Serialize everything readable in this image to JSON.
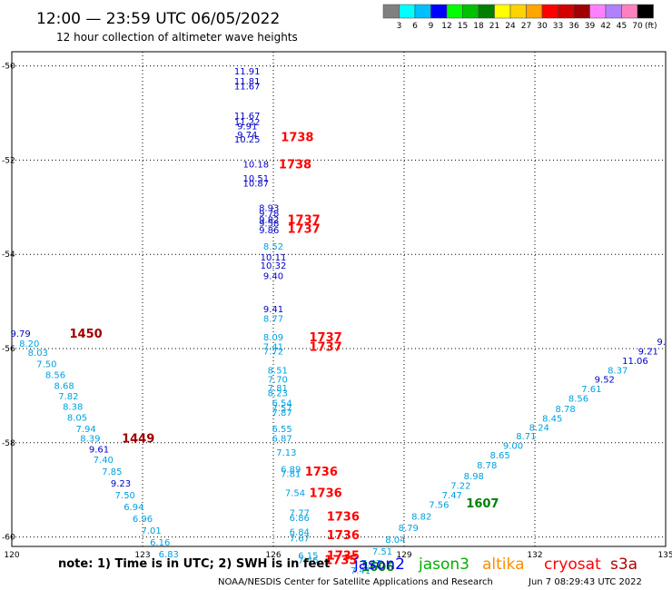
{
  "header": {
    "title": "12:00 — 23:59 UTC 06/05/2022",
    "subtitle": "12 hour collection of altimeter wave heights"
  },
  "footer": {
    "note": "note:  1) Time is in UTC; 2) SWH is in feet",
    "credit": "NOAA/NESDIS Center for Satellite Applications and Research",
    "timestamp": "Jun  7 08:29:43 UTC 2022"
  },
  "chart_data": {
    "type": "scatter",
    "xlim": [
      120,
      135
    ],
    "ylim": [
      -60.2,
      -49.7
    ],
    "x_ticks": [
      {
        "value": 120,
        "label": "120"
      },
      {
        "value": 123,
        "label": "123"
      },
      {
        "value": 126,
        "label": "126"
      },
      {
        "value": 129,
        "label": "129"
      },
      {
        "value": 132,
        "label": "132"
      },
      {
        "value": 135,
        "label": "135"
      }
    ],
    "y_ticks": [
      {
        "value": -50,
        "label": "-50"
      },
      {
        "value": -52,
        "label": "-52"
      },
      {
        "value": -54,
        "label": "-54"
      },
      {
        "value": -56,
        "label": "-56"
      },
      {
        "value": -58,
        "label": "-58"
      },
      {
        "value": -60,
        "label": "-60"
      }
    ],
    "grid": true,
    "legend": {
      "title_unit": "(ft)",
      "colors": [
        "#808080",
        "#00ffff",
        "#00bfff",
        "#0000ff",
        "#00ff00",
        "#00c000",
        "#008000",
        "#ffff00",
        "#ffd200",
        "#ffa500",
        "#ff0000",
        "#d20000",
        "#a00000",
        "#ff80ff",
        "#b080ff",
        "#ff80c0",
        "#000000"
      ],
      "labels": [
        "3",
        "6",
        "9",
        "12",
        "15",
        "18",
        "21",
        "24",
        "27",
        "30",
        "33",
        "36",
        "39",
        "42",
        "45",
        "70"
      ]
    },
    "satellites": [
      {
        "name": "jason2",
        "color": "#0000ff"
      },
      {
        "name": "jason3",
        "color": "#00b000"
      },
      {
        "name": "altika",
        "color": "#ff8c00"
      },
      {
        "name": "cryosat",
        "color": "#ff0000"
      },
      {
        "name": "s3a",
        "color": "#b00000"
      }
    ],
    "points": [
      {
        "x": 125.4,
        "y": -50.1,
        "v": "11.91",
        "c": "#0000cc"
      },
      {
        "x": 125.4,
        "y": -50.32,
        "v": "11.81",
        "c": "#0000cc"
      },
      {
        "x": 125.4,
        "y": -50.42,
        "v": "11.67",
        "c": "#0000cc"
      },
      {
        "x": 125.4,
        "y": -51.05,
        "v": "11.67",
        "c": "#0000cc"
      },
      {
        "x": 125.4,
        "y": -51.18,
        "v": "11.22",
        "c": "#0000cc"
      },
      {
        "x": 125.4,
        "y": -51.27,
        "v": "9.91",
        "c": "#0000cc"
      },
      {
        "x": 125.4,
        "y": -51.45,
        "v": "9.74",
        "c": "#0000cc"
      },
      {
        "x": 125.4,
        "y": -51.55,
        "v": "10.25",
        "c": "#0000cc"
      },
      {
        "x": 125.6,
        "y": -52.08,
        "v": "10.18",
        "c": "#0000cc"
      },
      {
        "x": 125.6,
        "y": -52.38,
        "v": "10.51",
        "c": "#0000cc"
      },
      {
        "x": 125.6,
        "y": -52.48,
        "v": "10.87",
        "c": "#0000cc"
      },
      {
        "x": 125.9,
        "y": -53.0,
        "v": "8.93",
        "c": "#0000cc"
      },
      {
        "x": 125.9,
        "y": -53.12,
        "v": "9.78",
        "c": "#0000cc"
      },
      {
        "x": 125.9,
        "y": -53.25,
        "v": "9.82",
        "c": "#0000cc"
      },
      {
        "x": 125.9,
        "y": -53.33,
        "v": "9.58",
        "c": "#0000cc"
      },
      {
        "x": 125.9,
        "y": -53.48,
        "v": "9.86",
        "c": "#0000cc"
      },
      {
        "x": 126.0,
        "y": -53.82,
        "v": "8.52",
        "c": "#00a0e0"
      },
      {
        "x": 126.0,
        "y": -54.05,
        "v": "10.11",
        "c": "#0000cc"
      },
      {
        "x": 126.0,
        "y": -54.23,
        "v": "10.32",
        "c": "#0000cc"
      },
      {
        "x": 126.0,
        "y": -54.45,
        "v": "9.40",
        "c": "#0000cc"
      },
      {
        "x": 126.0,
        "y": -55.15,
        "v": "9.41",
        "c": "#0000cc"
      },
      {
        "x": 126.0,
        "y": -55.35,
        "v": "8.77",
        "c": "#00a0e0"
      },
      {
        "x": 126.0,
        "y": -55.75,
        "v": "8.09",
        "c": "#00a0e0"
      },
      {
        "x": 126.0,
        "y": -55.95,
        "v": "7.41",
        "c": "#00a0e0"
      },
      {
        "x": 126.0,
        "y": -56.05,
        "v": "7.72",
        "c": "#00a0e0"
      },
      {
        "x": 126.1,
        "y": -56.45,
        "v": "8.51",
        "c": "#00a0e0"
      },
      {
        "x": 126.1,
        "y": -56.65,
        "v": "7.70",
        "c": "#00a0e0"
      },
      {
        "x": 126.1,
        "y": -56.83,
        "v": "7.81",
        "c": "#00a0e0"
      },
      {
        "x": 126.1,
        "y": -56.93,
        "v": "8.23",
        "c": "#00a0e0"
      },
      {
        "x": 126.2,
        "y": -57.15,
        "v": "6.54",
        "c": "#00a0e0"
      },
      {
        "x": 126.2,
        "y": -57.25,
        "v": "7.57",
        "c": "#00a0e0"
      },
      {
        "x": 126.2,
        "y": -57.35,
        "v": "7.87",
        "c": "#00a0e0"
      },
      {
        "x": 126.2,
        "y": -57.7,
        "v": "6.55",
        "c": "#00a0e0"
      },
      {
        "x": 126.2,
        "y": -57.9,
        "v": "6.87",
        "c": "#00a0e0"
      },
      {
        "x": 126.3,
        "y": -58.2,
        "v": "7.13",
        "c": "#00a0e0"
      },
      {
        "x": 126.4,
        "y": -58.55,
        "v": "6.89",
        "c": "#00a0e0"
      },
      {
        "x": 126.4,
        "y": -58.65,
        "v": "7.81",
        "c": "#00a0e0"
      },
      {
        "x": 126.5,
        "y": -59.05,
        "v": "7.54",
        "c": "#00a0e0"
      },
      {
        "x": 126.6,
        "y": -59.48,
        "v": "7.77",
        "c": "#00a0e0"
      },
      {
        "x": 126.6,
        "y": -59.58,
        "v": "6.86",
        "c": "#00a0e0"
      },
      {
        "x": 126.6,
        "y": -59.88,
        "v": "6.84",
        "c": "#00a0e0"
      },
      {
        "x": 126.6,
        "y": -60.02,
        "v": "7.67",
        "c": "#00a0e0"
      },
      {
        "x": 126.8,
        "y": -60.38,
        "v": "6.15",
        "c": "#00a0e0"
      },
      {
        "x": 126.8,
        "y": -60.48,
        "v": "7.46",
        "c": "#00a0e0"
      },
      {
        "x": 120.2,
        "y": -55.67,
        "v": "9.79",
        "c": "#0000cc"
      },
      {
        "x": 120.4,
        "y": -55.88,
        "v": "8.20",
        "c": "#00a0e0"
      },
      {
        "x": 120.6,
        "y": -56.08,
        "v": "8.03",
        "c": "#00a0e0"
      },
      {
        "x": 120.8,
        "y": -56.32,
        "v": "7.50",
        "c": "#00a0e0"
      },
      {
        "x": 121.0,
        "y": -56.55,
        "v": "8.56",
        "c": "#00a0e0"
      },
      {
        "x": 121.2,
        "y": -56.78,
        "v": "8.68",
        "c": "#00a0e0"
      },
      {
        "x": 121.3,
        "y": -57.0,
        "v": "7.82",
        "c": "#00a0e0"
      },
      {
        "x": 121.4,
        "y": -57.22,
        "v": "8.38",
        "c": "#00a0e0"
      },
      {
        "x": 121.5,
        "y": -57.45,
        "v": "8.05",
        "c": "#00a0e0"
      },
      {
        "x": 121.7,
        "y": -57.7,
        "v": "7.94",
        "c": "#00a0e0"
      },
      {
        "x": 121.8,
        "y": -57.9,
        "v": "8.39",
        "c": "#00a0e0"
      },
      {
        "x": 122.0,
        "y": -58.13,
        "v": "9.61",
        "c": "#0000cc"
      },
      {
        "x": 122.1,
        "y": -58.35,
        "v": "7.40",
        "c": "#00a0e0"
      },
      {
        "x": 122.3,
        "y": -58.6,
        "v": "7.85",
        "c": "#00a0e0"
      },
      {
        "x": 122.5,
        "y": -58.85,
        "v": "9.23",
        "c": "#0000cc"
      },
      {
        "x": 122.6,
        "y": -59.1,
        "v": "7.50",
        "c": "#00a0e0"
      },
      {
        "x": 122.8,
        "y": -59.35,
        "v": "6.94",
        "c": "#00a0e0"
      },
      {
        "x": 123.0,
        "y": -59.6,
        "v": "6.96",
        "c": "#00a0e0"
      },
      {
        "x": 123.2,
        "y": -59.85,
        "v": "7.01",
        "c": "#00a0e0"
      },
      {
        "x": 123.4,
        "y": -60.1,
        "v": "6.16",
        "c": "#00a0e0"
      },
      {
        "x": 123.6,
        "y": -60.35,
        "v": "6.83",
        "c": "#00a0e0"
      },
      {
        "x": 128.0,
        "y": -60.7,
        "v": "7.41",
        "c": "#00a0e0"
      },
      {
        "x": 128.25,
        "y": -60.55,
        "v": "7.43",
        "c": "#00a0e0"
      },
      {
        "x": 128.5,
        "y": -60.3,
        "v": "7.51",
        "c": "#00a0e0"
      },
      {
        "x": 128.8,
        "y": -60.05,
        "v": "8.04",
        "c": "#00a0e0"
      },
      {
        "x": 129.1,
        "y": -59.8,
        "v": "8.79",
        "c": "#00a0e0"
      },
      {
        "x": 129.4,
        "y": -59.55,
        "v": "8.82",
        "c": "#00a0e0"
      },
      {
        "x": 129.8,
        "y": -59.3,
        "v": "7.56",
        "c": "#00a0e0"
      },
      {
        "x": 130.1,
        "y": -59.1,
        "v": "7.47",
        "c": "#00a0e0"
      },
      {
        "x": 130.3,
        "y": -58.9,
        "v": "7.22",
        "c": "#00a0e0"
      },
      {
        "x": 130.6,
        "y": -58.7,
        "v": "8.98",
        "c": "#00a0e0"
      },
      {
        "x": 130.9,
        "y": -58.47,
        "v": "8.78",
        "c": "#00a0e0"
      },
      {
        "x": 131.2,
        "y": -58.25,
        "v": "8.65",
        "c": "#00a0e0"
      },
      {
        "x": 131.5,
        "y": -58.05,
        "v": "9.00",
        "c": "#00a0e0"
      },
      {
        "x": 131.8,
        "y": -57.85,
        "v": "8.71",
        "c": "#00a0e0"
      },
      {
        "x": 132.1,
        "y": -57.67,
        "v": "8.24",
        "c": "#00a0e0"
      },
      {
        "x": 132.4,
        "y": -57.47,
        "v": "8.45",
        "c": "#00a0e0"
      },
      {
        "x": 132.7,
        "y": -57.27,
        "v": "8.78",
        "c": "#00a0e0"
      },
      {
        "x": 133.0,
        "y": -57.05,
        "v": "8.56",
        "c": "#00a0e0"
      },
      {
        "x": 133.3,
        "y": -56.85,
        "v": "7.61",
        "c": "#00a0e0"
      },
      {
        "x": 133.6,
        "y": -56.65,
        "v": "9.52",
        "c": "#0000cc"
      },
      {
        "x": 133.9,
        "y": -56.45,
        "v": "8.37",
        "c": "#00a0e0"
      },
      {
        "x": 134.3,
        "y": -56.25,
        "v": "11.06",
        "c": "#0000cc"
      },
      {
        "x": 134.6,
        "y": -56.05,
        "v": "9.21",
        "c": "#0000cc"
      },
      {
        "x": 134.9,
        "y": -55.85,
        "v": "9.",
        "c": "#0000cc"
      }
    ],
    "time_labels": [
      {
        "x": 126.55,
        "y": -51.5,
        "v": "1738",
        "c": "#ff0000"
      },
      {
        "x": 126.5,
        "y": -52.08,
        "v": "1738",
        "c": "#ff0000"
      },
      {
        "x": 126.7,
        "y": -53.25,
        "v": "1737",
        "c": "#ff0000"
      },
      {
        "x": 126.7,
        "y": -53.45,
        "v": "1737",
        "c": "#ff0000"
      },
      {
        "x": 127.2,
        "y": -55.75,
        "v": "1737",
        "c": "#ff0000"
      },
      {
        "x": 127.2,
        "y": -55.95,
        "v": "1737",
        "c": "#ff0000"
      },
      {
        "x": 121.7,
        "y": -55.67,
        "v": "1450",
        "c": "#a00000"
      },
      {
        "x": 122.9,
        "y": -57.9,
        "v": "1449",
        "c": "#a00000"
      },
      {
        "x": 127.1,
        "y": -58.6,
        "v": "1736",
        "c": "#ff0000"
      },
      {
        "x": 127.2,
        "y": -59.05,
        "v": "1736",
        "c": "#ff0000"
      },
      {
        "x": 127.6,
        "y": -59.55,
        "v": "1736",
        "c": "#ff0000"
      },
      {
        "x": 127.6,
        "y": -59.95,
        "v": "1736",
        "c": "#ff0000"
      },
      {
        "x": 127.6,
        "y": -60.38,
        "v": "1735",
        "c": "#ff0000"
      },
      {
        "x": 127.55,
        "y": -60.48,
        "v": "1735",
        "c": "#ff0000"
      },
      {
        "x": 128.4,
        "y": -60.62,
        "v": "1606",
        "c": "#008000"
      },
      {
        "x": 130.8,
        "y": -59.28,
        "v": "1607",
        "c": "#008000"
      }
    ]
  }
}
